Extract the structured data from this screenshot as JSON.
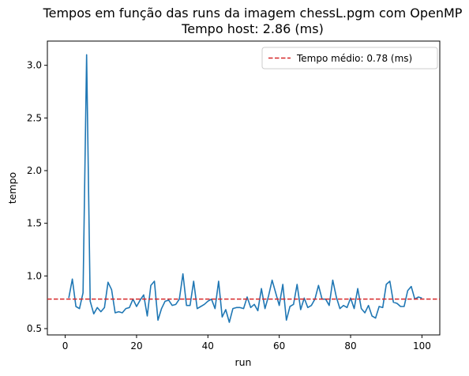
{
  "chart_data": {
    "type": "line",
    "title": "Tempos em função das runs da imagem chessL.pgm com OpenMP",
    "subtitle": "Tempo host: 2.86 (ms)",
    "xlabel": "run",
    "ylabel": "tempo",
    "xlim": [
      -5,
      105
    ],
    "ylim": [
      0.44,
      3.23
    ],
    "xticks": [
      0,
      20,
      40,
      60,
      80,
      100
    ],
    "yticks": [
      0.5,
      1.0,
      1.5,
      2.0,
      2.5,
      3.0
    ],
    "ytick_labels": [
      "0.5",
      "1.0",
      "1.5",
      "2.0",
      "2.5",
      "3.0"
    ],
    "grid": false,
    "legend_position": "top-right",
    "series": [
      {
        "color": "#1f77b4",
        "x": [
          1,
          2,
          3,
          4,
          5,
          6,
          7,
          8,
          9,
          10,
          11,
          12,
          13,
          14,
          15,
          16,
          17,
          18,
          19,
          20,
          21,
          22,
          23,
          24,
          25,
          26,
          27,
          28,
          29,
          30,
          31,
          32,
          33,
          34,
          35,
          36,
          37,
          38,
          39,
          40,
          41,
          42,
          43,
          44,
          45,
          46,
          47,
          48,
          49,
          50,
          51,
          52,
          53,
          54,
          55,
          56,
          57,
          58,
          59,
          60,
          61,
          62,
          63,
          64,
          65,
          66,
          67,
          68,
          69,
          70,
          71,
          72,
          73,
          74,
          75,
          76,
          77,
          78,
          79,
          80,
          81,
          82,
          83,
          84,
          85,
          86,
          87,
          88,
          89,
          90,
          91,
          92,
          93,
          94,
          95,
          96,
          97,
          98,
          99,
          100
        ],
        "values": [
          0.79,
          0.97,
          0.71,
          0.69,
          0.84,
          3.1,
          0.76,
          0.64,
          0.7,
          0.66,
          0.7,
          0.94,
          0.87,
          0.65,
          0.66,
          0.65,
          0.69,
          0.7,
          0.78,
          0.71,
          0.77,
          0.82,
          0.62,
          0.91,
          0.95,
          0.58,
          0.69,
          0.76,
          0.77,
          0.72,
          0.73,
          0.78,
          1.02,
          0.72,
          0.72,
          0.95,
          0.69,
          0.71,
          0.73,
          0.76,
          0.78,
          0.69,
          0.95,
          0.61,
          0.68,
          0.56,
          0.69,
          0.7,
          0.7,
          0.69,
          0.8,
          0.7,
          0.73,
          0.67,
          0.88,
          0.69,
          0.81,
          0.96,
          0.84,
          0.72,
          0.92,
          0.58,
          0.71,
          0.73,
          0.92,
          0.68,
          0.79,
          0.7,
          0.72,
          0.78,
          0.91,
          0.78,
          0.78,
          0.72,
          0.96,
          0.8,
          0.69,
          0.72,
          0.7,
          0.79,
          0.69,
          0.88,
          0.69,
          0.65,
          0.72,
          0.62,
          0.6,
          0.71,
          0.7,
          0.92,
          0.95,
          0.75,
          0.74,
          0.71,
          0.71,
          0.86,
          0.9,
          0.78,
          0.8,
          0.79
        ]
      }
    ],
    "reference_line": {
      "label": "Tempo médio: 0.78 (ms)",
      "value": 0.78,
      "color": "#d62728",
      "style": "dashed"
    }
  }
}
